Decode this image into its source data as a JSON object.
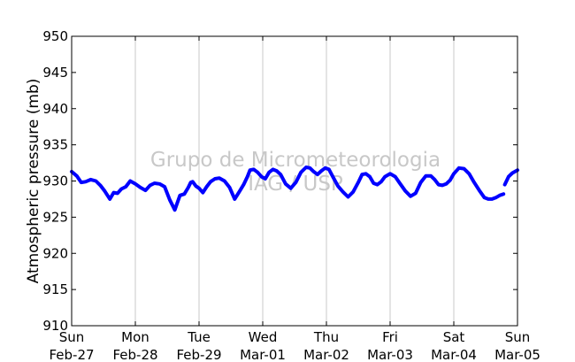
{
  "chart_data": {
    "type": "line",
    "title": "",
    "xlabel": "",
    "ylabel": "Atmospheric pressure (mb)",
    "ylim": [
      910,
      950
    ],
    "yticks": [
      910,
      915,
      920,
      925,
      930,
      935,
      940,
      945,
      950
    ],
    "xlim": [
      0,
      7
    ],
    "xticks": [
      {
        "x": 0,
        "day": "Sun",
        "date": "Feb-27"
      },
      {
        "x": 1,
        "day": "Mon",
        "date": "Feb-28"
      },
      {
        "x": 2,
        "day": "Tue",
        "date": "Feb-29"
      },
      {
        "x": 3,
        "day": "Wed",
        "date": "Mar-01"
      },
      {
        "x": 4,
        "day": "Thu",
        "date": "Mar-02"
      },
      {
        "x": 5,
        "day": "Fri",
        "date": "Mar-03"
      },
      {
        "x": 6,
        "day": "Sat",
        "date": "Mar-04"
      },
      {
        "x": 7,
        "day": "Sun",
        "date": "Mar-05"
      }
    ],
    "x_unit": "days from Sun Feb-27 00:00",
    "grid": "vertical",
    "series": [
      {
        "color": "#0000ff",
        "segments": [
          {
            "x": [
              0.0,
              0.08,
              0.15,
              0.22,
              0.3,
              0.38,
              0.45,
              0.52,
              0.6,
              0.66,
              0.72,
              0.78,
              0.85,
              0.92,
              1.0,
              1.08,
              1.16,
              1.23,
              1.3,
              1.38,
              1.46,
              1.54,
              1.62,
              1.7,
              1.77,
              1.83,
              1.87,
              1.9,
              1.95,
              2.0,
              2.06,
              2.12,
              2.18,
              2.25,
              2.32,
              2.4,
              2.48,
              2.56,
              2.63,
              2.7,
              2.76,
              2.8,
              2.86,
              2.92,
              2.98,
              3.04,
              3.1,
              3.16,
              3.22,
              3.28,
              3.36,
              3.44,
              3.52,
              3.6,
              3.68,
              3.74,
              3.8,
              3.86,
              3.92,
              3.98,
              4.04,
              4.1,
              4.18,
              4.26,
              4.34,
              4.42,
              4.5,
              4.56,
              4.62,
              4.68,
              4.74,
              4.8,
              4.86,
              4.92,
              5.0,
              5.08,
              5.16,
              5.24,
              5.32,
              5.4,
              5.48,
              5.56,
              5.64,
              5.7,
              5.76,
              5.82,
              5.88,
              5.94,
              6.0,
              6.08,
              6.16,
              6.24,
              6.32,
              6.4,
              6.48,
              6.54,
              6.6,
              6.66,
              6.72,
              6.78
            ],
            "y": [
              931.3,
              930.7,
              929.8,
              929.9,
              930.2,
              930.0,
              929.4,
              928.6,
              927.5,
              928.4,
              928.3,
              928.9,
              929.2,
              930.0,
              929.6,
              929.1,
              928.7,
              929.4,
              929.7,
              929.6,
              929.2,
              927.4,
              926.0,
              928.0,
              928.2,
              929.1,
              929.8,
              929.9,
              929.3,
              929.0,
              928.4,
              929.2,
              929.9,
              930.3,
              930.4,
              930.0,
              929.1,
              927.5,
              928.5,
              929.5,
              930.6,
              931.5,
              931.6,
              931.2,
              930.6,
              930.3,
              931.2,
              931.6,
              931.4,
              930.9,
              929.6,
              929.0,
              929.8,
              931.2,
              931.9,
              931.8,
              931.3,
              930.9,
              931.4,
              931.8,
              931.6,
              930.6,
              929.3,
              928.5,
              927.8,
              928.5,
              929.8,
              930.9,
              931.0,
              930.6,
              929.7,
              929.5,
              929.9,
              930.6,
              931.0,
              930.6,
              929.6,
              928.6,
              927.9,
              928.3,
              929.8,
              930.7,
              930.7,
              930.2,
              929.5,
              929.4,
              929.6,
              930.1,
              931.0,
              931.8,
              931.7,
              931.0,
              929.8,
              928.7,
              927.7,
              927.5,
              927.5,
              927.7,
              928.0,
              928.2
            ]
          },
          {
            "x": [
              6.8,
              6.86,
              6.92,
              7.0
            ],
            "y": [
              929.5,
              930.6,
              931.1,
              931.5
            ]
          }
        ]
      }
    ],
    "watermark": [
      "Grupo de Micrometeorologia",
      "IAG / USP"
    ]
  }
}
